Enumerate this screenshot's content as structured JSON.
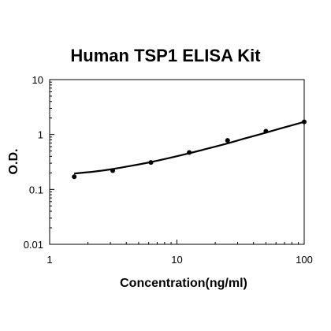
{
  "chart_data": {
    "type": "scatter",
    "title": "Human TSP1 ELISA Kit",
    "xlabel": "Concentration(ng/ml)",
    "ylabel": "O.D.",
    "x_scale": "log",
    "y_scale": "log",
    "xlim": [
      1,
      100
    ],
    "ylim": [
      0.01,
      10
    ],
    "x_ticks": [
      1,
      10,
      100
    ],
    "x_tick_labels": [
      "1",
      "10",
      "100"
    ],
    "y_ticks": [
      0.01,
      0.1,
      1,
      10
    ],
    "y_tick_labels": [
      "0.01",
      "0.1",
      "1",
      "10"
    ],
    "grid": false,
    "series": [
      {
        "x": [
          1.56,
          3.13,
          6.25,
          12.5,
          25,
          50,
          100
        ],
        "y": [
          0.17,
          0.22,
          0.31,
          0.47,
          0.78,
          1.15,
          1.7
        ]
      }
    ],
    "fit_curve": {
      "x": [
        1.56,
        2.2,
        3.13,
        4.4,
        6.25,
        8.8,
        12.5,
        17.7,
        25,
        35,
        50,
        70,
        100
      ],
      "y": [
        0.195,
        0.21,
        0.235,
        0.27,
        0.315,
        0.375,
        0.455,
        0.56,
        0.69,
        0.86,
        1.08,
        1.35,
        1.7
      ]
    }
  }
}
